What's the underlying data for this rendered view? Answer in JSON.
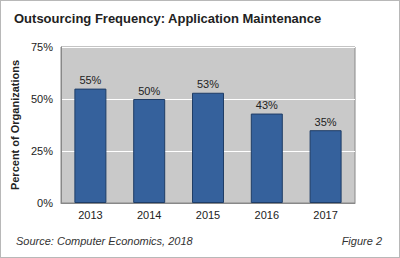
{
  "chart_data": {
    "type": "bar",
    "title": "Outsourcing Frequency: Application Maintenance",
    "categories": [
      "2013",
      "2014",
      "2015",
      "2016",
      "2017"
    ],
    "values": [
      55,
      50,
      53,
      43,
      35
    ],
    "value_labels": [
      "55%",
      "50%",
      "53%",
      "43%",
      "35%"
    ],
    "color": "#35619c",
    "ylabel": "Percent of Organizations",
    "ylim": [
      0,
      75
    ],
    "yticks": [
      {
        "value": 0,
        "label": "0%"
      },
      {
        "value": 25,
        "label": "25%"
      },
      {
        "value": 50,
        "label": "50%"
      },
      {
        "value": 75,
        "label": "75%"
      }
    ],
    "grid": true,
    "data_labels": true,
    "annotations": [
      "Source: Computer Economics, 2018",
      "Figure 2"
    ]
  }
}
